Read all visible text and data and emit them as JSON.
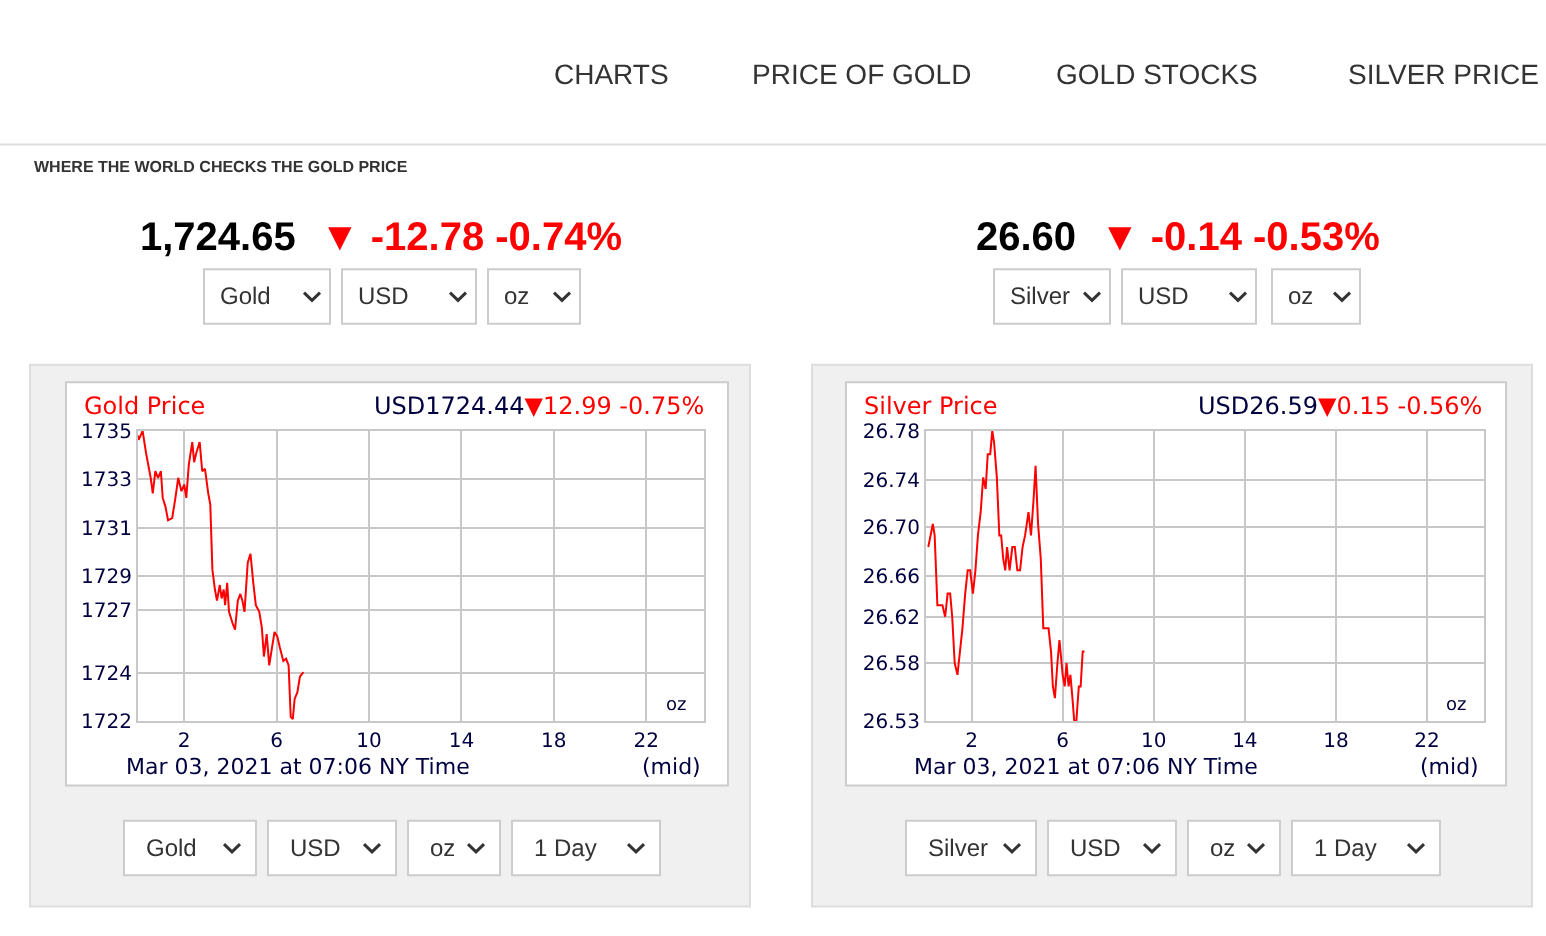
{
  "chart_data": [
    {
      "type": "line",
      "title": "Gold Price",
      "grid": true,
      "marker": "none",
      "line_style": "solid",
      "xlim": [
        0,
        24.5
      ],
      "xticks": [
        2,
        6,
        10,
        14,
        18,
        22
      ],
      "ylim": [
        1722,
        1735
      ],
      "yticks": [
        {
          "value": 1722,
          "label": "1722"
        },
        {
          "value": 1724.17,
          "label": "1724"
        },
        {
          "value": 1727,
          "label": "1727"
        },
        {
          "value": 1728.5,
          "label": "1729"
        },
        {
          "value": 1730.67,
          "label": "1731"
        },
        {
          "value": 1732.83,
          "label": "1733"
        },
        {
          "value": 1735,
          "label": "1735"
        }
      ],
      "series": [
        {
          "color": "#ff0000",
          "x": [
            0,
            0.03,
            0.2,
            0.35,
            0.55,
            0.64,
            0.75,
            0.87,
            0.99,
            1.07,
            1.19,
            1.3,
            1.48,
            1.62,
            1.74,
            1.88,
            2.0,
            2.09,
            2.2,
            2.35,
            2.43,
            2.52,
            2.67,
            2.78,
            2.9,
            3.04,
            3.13,
            3.22,
            3.33,
            3.42,
            3.54,
            3.62,
            3.71,
            3.77,
            3.86,
            3.94,
            4.09,
            4.2,
            4.32,
            4.43,
            4.52,
            4.61,
            4.75,
            4.87,
            4.99,
            5.1,
            5.25,
            5.36,
            5.45,
            5.57,
            5.68,
            5.8,
            5.91,
            6.03,
            6.14,
            6.29,
            6.41,
            6.52,
            6.61,
            6.7,
            6.78,
            6.9,
            7.01,
            7.16
          ],
          "values": [
            1734.8,
            1734.6,
            1735.0,
            1734.0,
            1732.9,
            1732.2,
            1733.2,
            1732.9,
            1733.2,
            1732.0,
            1731.6,
            1731.0,
            1731.1,
            1732.0,
            1732.9,
            1732.3,
            1732.6,
            1732.0,
            1733.5,
            1734.5,
            1733.6,
            1734.0,
            1734.5,
            1733.2,
            1733.3,
            1732.2,
            1731.7,
            1728.8,
            1727.9,
            1727.4,
            1728.1,
            1727.5,
            1727.9,
            1727.2,
            1728.2,
            1726.9,
            1726.4,
            1726.1,
            1727.4,
            1727.7,
            1727.4,
            1726.9,
            1729.1,
            1729.5,
            1728.2,
            1727.2,
            1726.9,
            1726.2,
            1724.9,
            1725.9,
            1724.5,
            1725.3,
            1726.0,
            1725.8,
            1725.3,
            1724.7,
            1724.8,
            1724.5,
            1722.2,
            1722.1,
            1723.0,
            1723.3,
            1724.0,
            1724.2
          ]
        }
      ],
      "annotations": [
        "CHARTS",
        "PRICE OF GOLD",
        "GOLD STOCKS",
        "SILVER PRICE",
        "WHERE THE WORLD CHECKS THE GOLD PRICE",
        "1,724.65",
        "▼ -12.78 -0.74%",
        "Gold",
        "USD",
        "oz",
        "USD1724.44",
        "▼12.99 -0.75%",
        "oz",
        "Mar 03, 2021 at 07:06 NY Time",
        "(mid)",
        "Gold",
        "USD",
        "oz",
        "1 Day"
      ]
    },
    {
      "type": "line",
      "title": "Silver Price",
      "grid": true,
      "marker": "none",
      "line_style": "solid",
      "xlim": [
        0,
        24.5
      ],
      "xticks": [
        2,
        6,
        10,
        14,
        18,
        22
      ],
      "ylim": [
        26.53,
        26.78
      ],
      "yticks": [
        {
          "value": 26.53,
          "label": "26.53"
        },
        {
          "value": 26.58,
          "label": "26.58"
        },
        {
          "value": 26.62,
          "label": "26.62"
        },
        {
          "value": 26.655,
          "label": "26.66"
        },
        {
          "value": 26.697,
          "label": "26.70"
        },
        {
          "value": 26.738,
          "label": "26.74"
        },
        {
          "value": 26.78,
          "label": "26.78"
        }
      ],
      "series": [
        {
          "color": "#ff0000",
          "x": [
            0.1,
            0.3,
            0.38,
            0.5,
            0.61,
            0.72,
            0.84,
            0.95,
            1.06,
            1.15,
            1.26,
            1.38,
            1.49,
            1.6,
            1.72,
            1.83,
            1.94,
            2.06,
            2.17,
            2.28,
            2.4,
            2.51,
            2.62,
            2.71,
            2.82,
            2.91,
            2.99,
            3.11,
            3.22,
            3.3,
            3.39,
            3.48,
            3.56,
            3.67,
            3.79,
            3.9,
            4.01,
            4.13,
            4.24,
            4.35,
            4.5,
            4.61,
            4.72,
            4.81,
            4.92,
            5.04,
            5.15,
            5.26,
            5.38,
            5.49,
            5.57,
            5.66,
            5.77,
            5.86,
            6.0,
            6.09,
            6.17,
            6.26,
            6.34,
            6.43,
            6.51,
            6.6,
            6.71,
            6.79,
            6.88,
            6.96
          ],
          "values": [
            26.68,
            26.7,
            26.69,
            26.63,
            26.63,
            26.63,
            26.62,
            26.64,
            26.64,
            26.62,
            26.58,
            26.57,
            26.59,
            26.61,
            26.64,
            26.66,
            26.66,
            26.64,
            26.66,
            26.69,
            26.71,
            26.74,
            26.73,
            26.76,
            26.76,
            26.78,
            26.77,
            26.74,
            26.69,
            26.69,
            26.67,
            26.66,
            26.68,
            26.66,
            26.68,
            26.68,
            26.66,
            26.66,
            26.68,
            26.69,
            26.71,
            26.69,
            26.72,
            26.75,
            26.7,
            26.67,
            26.61,
            26.61,
            26.61,
            26.59,
            26.56,
            26.55,
            26.58,
            26.6,
            26.57,
            26.56,
            26.58,
            26.56,
            26.57,
            26.55,
            26.53,
            26.53,
            26.56,
            26.56,
            26.59,
            26.59
          ]
        }
      ],
      "annotations": [
        "26.60",
        "▼ -0.14 -0.53%",
        "Silver",
        "USD",
        "oz",
        "USD26.59",
        "▼0.15 -0.56%",
        "oz",
        "Mar 03, 2021 at 07:06 NY Time",
        "(mid)",
        "Silver",
        "USD",
        "oz",
        "1 Day"
      ]
    }
  ]
}
